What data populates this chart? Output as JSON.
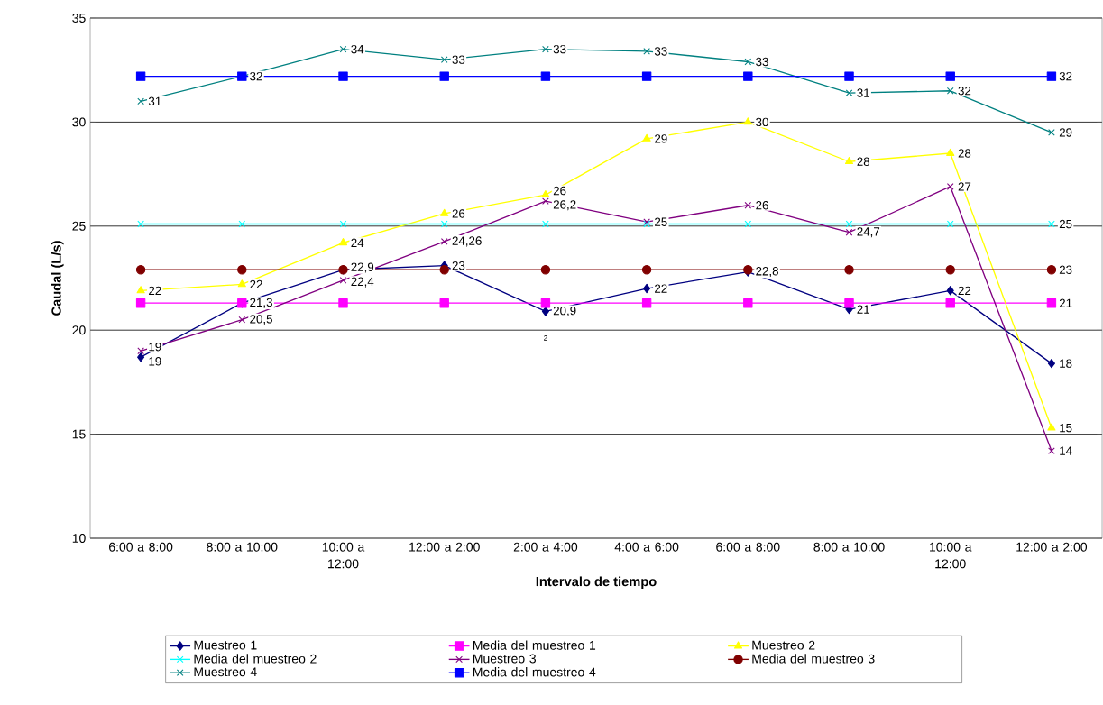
{
  "chart_data": {
    "type": "line",
    "xlabel": "Intervalo de tiempo",
    "ylabel": "Caudal (L/s)",
    "categories": [
      "6:00 a 8:00",
      "8:00 a 10:00",
      "10:00 a 12:00",
      "12:00 a 2:00",
      "2:00 a 4:00",
      "4:00 a 6:00",
      "6:00 a 8:00",
      "8:00 a 10:00",
      "10:00 a 12:00",
      "12:00 a 2:00"
    ],
    "series": [
      {
        "name": "Muestreo 1",
        "color": "#000080",
        "marker": "diamond",
        "values": [
          18.7,
          21.3,
          22.9,
          23.1,
          20.9,
          22.0,
          22.8,
          21.0,
          21.9,
          18.4
        ],
        "value_labels": [
          "19",
          "21,3",
          "22,9",
          "23",
          "20,9",
          "22",
          "22,8",
          "21",
          "22",
          "18"
        ]
      },
      {
        "name": "Media del muestreo 1",
        "color": "#ff00ff",
        "marker": "square",
        "values": [
          21.3,
          21.3,
          21.3,
          21.3,
          21.3,
          21.3,
          21.3,
          21.3,
          21.3,
          21.3
        ],
        "value_labels": [
          null,
          null,
          null,
          null,
          null,
          null,
          null,
          null,
          null,
          "21"
        ]
      },
      {
        "name": "Muestreo 2",
        "color": "#ffff00",
        "marker": "triangle",
        "values": [
          21.9,
          22.2,
          24.2,
          25.6,
          26.5,
          29.2,
          30.0,
          28.1,
          28.5,
          15.3
        ],
        "value_labels": [
          "22",
          "22",
          "24",
          "26",
          "26",
          "29",
          "30",
          "28",
          "28",
          "15"
        ]
      },
      {
        "name": "Media del muestreo 2",
        "color": "#00ffff",
        "marker": "cross",
        "values": [
          25.1,
          25.1,
          25.1,
          25.1,
          25.1,
          25.1,
          25.1,
          25.1,
          25.1,
          25.1
        ],
        "value_labels": [
          null,
          null,
          null,
          null,
          null,
          null,
          null,
          null,
          null,
          "25"
        ]
      },
      {
        "name": "Muestreo 3",
        "color": "#800080",
        "marker": "cross",
        "values": [
          19.0,
          20.5,
          22.4,
          24.26,
          26.2,
          25.2,
          26.0,
          24.7,
          26.9,
          14.2
        ],
        "value_labels": [
          "19",
          "20,5",
          "22,4",
          "24,26",
          "26,2",
          "25",
          "26",
          "24,7",
          "27",
          "14"
        ]
      },
      {
        "name": "Media del muestreo 3",
        "color": "#800000",
        "marker": "circle",
        "values": [
          22.9,
          22.9,
          22.9,
          22.9,
          22.9,
          22.9,
          22.9,
          22.9,
          22.9,
          22.9
        ],
        "value_labels": [
          null,
          null,
          null,
          null,
          null,
          null,
          null,
          null,
          null,
          "23"
        ]
      },
      {
        "name": "Muestreo 4",
        "color": "#008080",
        "marker": "cross",
        "values": [
          31.0,
          32.2,
          33.5,
          33.0,
          33.5,
          33.4,
          32.9,
          31.4,
          31.5,
          29.5
        ],
        "value_labels": [
          "31",
          "32",
          "34",
          "33",
          "33",
          "33",
          "33",
          "31",
          "32",
          "29"
        ]
      },
      {
        "name": "Media del muestreo 4",
        "color": "#0000ff",
        "marker": "square",
        "values": [
          32.2,
          32.2,
          32.2,
          32.2,
          32.2,
          32.2,
          32.2,
          32.2,
          32.2,
          32.2
        ],
        "value_labels": [
          null,
          null,
          null,
          null,
          null,
          null,
          null,
          null,
          null,
          "32"
        ]
      }
    ],
    "annotations": [
      "2"
    ],
    "ylim": [
      10,
      35
    ],
    "yticks": [
      10,
      15,
      20,
      25,
      30,
      35
    ],
    "grid": "y",
    "legend": "bottom",
    "line_style": "solid"
  }
}
